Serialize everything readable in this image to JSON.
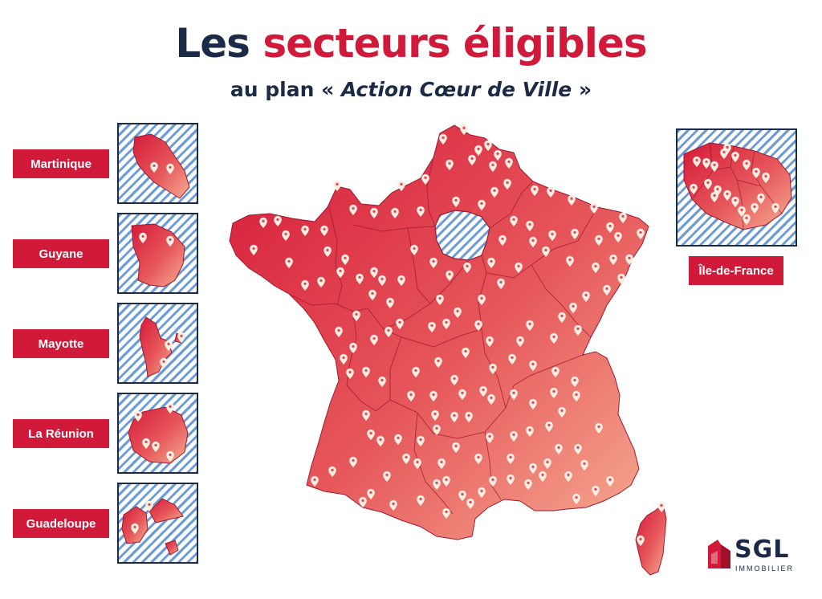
{
  "header": {
    "title_part1": "Les ",
    "title_part2": "secteurs éligibles",
    "subtitle_pre": "au plan « ",
    "subtitle_em": "Action Cœur de Ville",
    "subtitle_post": " »"
  },
  "overseas": [
    {
      "label": "Martinique"
    },
    {
      "label": "Guyane"
    },
    {
      "label": "Mayotte"
    },
    {
      "label": "La Réunion"
    },
    {
      "label": "Guadeloupe"
    }
  ],
  "idf": {
    "label": "Île-de-France"
  },
  "logo": {
    "name": "SGL",
    "sub": "IMMOBILIER"
  },
  "colors": {
    "accent": "#d11a3a",
    "navy": "#1b2a47",
    "hatch_blue": "#6b9bd8",
    "land_dark": "#d81e3e",
    "land_light": "#f4a58e",
    "pin": "#fbeee0"
  }
}
